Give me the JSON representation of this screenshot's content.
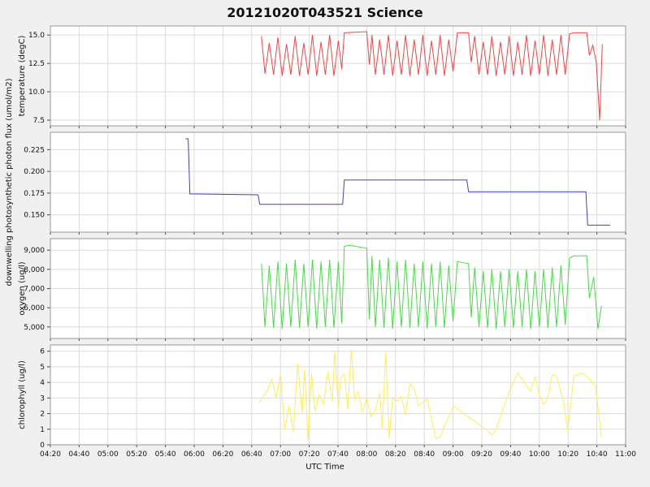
{
  "title": "20121020T043521 Science",
  "xaxis": {
    "label": "UTC Time",
    "range": [
      4.3333,
      11.0
    ],
    "tick_labels": [
      "04:20",
      "04:40",
      "05:00",
      "05:20",
      "05:40",
      "06:00",
      "06:20",
      "06:40",
      "07:00",
      "07:20",
      "07:40",
      "08:00",
      "08:20",
      "08:40",
      "09:00",
      "09:20",
      "09:40",
      "10:00",
      "10:20",
      "10:40",
      "11:00"
    ]
  },
  "colors": {
    "background": "#f0f0f0",
    "plot_bg": "#ffffff",
    "grid": "#dcdcdc",
    "frame": "#999999",
    "tick": "#444444"
  },
  "chart_data": [
    {
      "type": "line",
      "name": "temperature",
      "series_color": "#ff4040",
      "ylabel": "temperature (degC)",
      "ylim": [
        7.0,
        15.8
      ],
      "yticks": [
        7.5,
        10.0,
        12.5,
        15.0
      ],
      "ytick_labels": [
        "7.5",
        "10.0",
        "12.5",
        "15.0"
      ],
      "grid": true,
      "points": [
        [
          6.78,
          14.9
        ],
        [
          6.82,
          11.6
        ],
        [
          6.87,
          14.3
        ],
        [
          6.92,
          11.5
        ],
        [
          6.97,
          14.8
        ],
        [
          7.02,
          11.4
        ],
        [
          7.07,
          14.2
        ],
        [
          7.12,
          11.5
        ],
        [
          7.17,
          14.9
        ],
        [
          7.22,
          11.4
        ],
        [
          7.27,
          14.3
        ],
        [
          7.32,
          11.5
        ],
        [
          7.37,
          15.0
        ],
        [
          7.42,
          11.4
        ],
        [
          7.47,
          14.4
        ],
        [
          7.52,
          11.5
        ],
        [
          7.57,
          15.0
        ],
        [
          7.62,
          11.4
        ],
        [
          7.67,
          14.5
        ],
        [
          7.71,
          12.0
        ],
        [
          7.74,
          15.2
        ],
        [
          8.0,
          15.3
        ],
        [
          8.03,
          12.4
        ],
        [
          8.06,
          15.0
        ],
        [
          8.1,
          11.5
        ],
        [
          8.15,
          14.6
        ],
        [
          8.2,
          11.5
        ],
        [
          8.25,
          15.0
        ],
        [
          8.3,
          11.4
        ],
        [
          8.35,
          14.5
        ],
        [
          8.4,
          11.5
        ],
        [
          8.45,
          15.0
        ],
        [
          8.5,
          11.4
        ],
        [
          8.55,
          14.6
        ],
        [
          8.6,
          11.5
        ],
        [
          8.65,
          15.0
        ],
        [
          8.7,
          11.4
        ],
        [
          8.75,
          14.5
        ],
        [
          8.8,
          11.5
        ],
        [
          8.85,
          15.0
        ],
        [
          8.9,
          11.4
        ],
        [
          8.95,
          14.6
        ],
        [
          9.0,
          11.8
        ],
        [
          9.05,
          15.2
        ],
        [
          9.18,
          15.2
        ],
        [
          9.21,
          12.6
        ],
        [
          9.25,
          14.9
        ],
        [
          9.3,
          11.5
        ],
        [
          9.35,
          14.4
        ],
        [
          9.4,
          11.5
        ],
        [
          9.45,
          14.9
        ],
        [
          9.5,
          11.4
        ],
        [
          9.55,
          14.4
        ],
        [
          9.6,
          11.5
        ],
        [
          9.65,
          14.9
        ],
        [
          9.7,
          11.4
        ],
        [
          9.75,
          14.4
        ],
        [
          9.8,
          11.5
        ],
        [
          9.85,
          15.0
        ],
        [
          9.9,
          11.4
        ],
        [
          9.95,
          14.5
        ],
        [
          10.0,
          11.5
        ],
        [
          10.05,
          15.0
        ],
        [
          10.1,
          11.4
        ],
        [
          10.15,
          14.6
        ],
        [
          10.2,
          11.5
        ],
        [
          10.25,
          15.0
        ],
        [
          10.3,
          11.5
        ],
        [
          10.35,
          15.1
        ],
        [
          10.4,
          15.2
        ],
        [
          10.55,
          15.2
        ],
        [
          10.58,
          13.2
        ],
        [
          10.62,
          14.1
        ],
        [
          10.66,
          12.6
        ],
        [
          10.7,
          7.5
        ],
        [
          10.73,
          14.2
        ]
      ]
    },
    {
      "type": "line",
      "name": "ppf",
      "series_color": "#4040cc",
      "ylabel": "downwelling photosynthetic photon flux (umol/m2)",
      "ylim": [
        0.13,
        0.245
      ],
      "yticks": [
        0.15,
        0.175,
        0.2,
        0.225
      ],
      "ytick_labels": [
        "0.150",
        "0.175",
        "0.200",
        "0.225"
      ],
      "grid": true,
      "points": [
        [
          5.9,
          0.2375
        ],
        [
          5.93,
          0.2375
        ],
        [
          5.95,
          0.174
        ],
        [
          6.74,
          0.173
        ],
        [
          6.76,
          0.162
        ],
        [
          7.72,
          0.162
        ],
        [
          7.74,
          0.19
        ],
        [
          9.16,
          0.19
        ],
        [
          9.18,
          0.1765
        ],
        [
          10.54,
          0.1765
        ],
        [
          10.56,
          0.138
        ],
        [
          10.82,
          0.138
        ]
      ]
    },
    {
      "type": "line",
      "name": "oxygen",
      "series_color": "#44dd44",
      "ylabel": "oxygen (ug/l)",
      "ylim": [
        4400,
        9600
      ],
      "yticks": [
        5000,
        6000,
        7000,
        8000,
        9000
      ],
      "ytick_labels": [
        "5,000",
        "6,000",
        "7,000",
        "8,000",
        "9,000"
      ],
      "grid": true,
      "points": [
        [
          6.78,
          8300
        ],
        [
          6.82,
          5000
        ],
        [
          6.87,
          8200
        ],
        [
          6.92,
          4950
        ],
        [
          6.97,
          8400
        ],
        [
          7.02,
          4900
        ],
        [
          7.07,
          8300
        ],
        [
          7.12,
          5000
        ],
        [
          7.17,
          8500
        ],
        [
          7.22,
          4950
        ],
        [
          7.27,
          8300
        ],
        [
          7.32,
          5000
        ],
        [
          7.37,
          8500
        ],
        [
          7.42,
          4900
        ],
        [
          7.47,
          8400
        ],
        [
          7.52,
          5000
        ],
        [
          7.57,
          8500
        ],
        [
          7.62,
          4950
        ],
        [
          7.67,
          8400
        ],
        [
          7.71,
          5200
        ],
        [
          7.74,
          9200
        ],
        [
          7.8,
          9250
        ],
        [
          8.0,
          9100
        ],
        [
          8.03,
          5400
        ],
        [
          8.06,
          8700
        ],
        [
          8.1,
          5000
        ],
        [
          8.15,
          8500
        ],
        [
          8.2,
          4950
        ],
        [
          8.25,
          8600
        ],
        [
          8.3,
          4900
        ],
        [
          8.35,
          8400
        ],
        [
          8.4,
          5000
        ],
        [
          8.45,
          8500
        ],
        [
          8.5,
          4950
        ],
        [
          8.55,
          8300
        ],
        [
          8.6,
          5000
        ],
        [
          8.65,
          8400
        ],
        [
          8.7,
          4900
        ],
        [
          8.75,
          8300
        ],
        [
          8.8,
          5000
        ],
        [
          8.85,
          8400
        ],
        [
          8.9,
          4950
        ],
        [
          8.95,
          8200
        ],
        [
          9.0,
          5300
        ],
        [
          9.05,
          8400
        ],
        [
          9.18,
          8300
        ],
        [
          9.21,
          5500
        ],
        [
          9.25,
          8100
        ],
        [
          9.3,
          5000
        ],
        [
          9.35,
          7900
        ],
        [
          9.4,
          4950
        ],
        [
          9.45,
          8000
        ],
        [
          9.5,
          4900
        ],
        [
          9.55,
          7900
        ],
        [
          9.6,
          5000
        ],
        [
          9.65,
          8000
        ],
        [
          9.7,
          4950
        ],
        [
          9.75,
          7900
        ],
        [
          9.8,
          5000
        ],
        [
          9.85,
          8000
        ],
        [
          9.9,
          4900
        ],
        [
          9.95,
          7900
        ],
        [
          10.0,
          5000
        ],
        [
          10.05,
          8000
        ],
        [
          10.1,
          4950
        ],
        [
          10.15,
          8100
        ],
        [
          10.2,
          5000
        ],
        [
          10.25,
          8200
        ],
        [
          10.3,
          5100
        ],
        [
          10.35,
          8600
        ],
        [
          10.4,
          8700
        ],
        [
          10.55,
          8700
        ],
        [
          10.58,
          6500
        ],
        [
          10.63,
          7600
        ],
        [
          10.68,
          4900
        ],
        [
          10.72,
          6100
        ]
      ]
    },
    {
      "type": "line",
      "name": "chlorophyll",
      "series_color": "#ffee55",
      "ylabel": "chlorophyll (ug/l)",
      "ylim": [
        0,
        6.4
      ],
      "yticks": [
        0,
        1,
        2,
        3,
        4,
        5,
        6
      ],
      "ytick_labels": [
        "0",
        "1",
        "2",
        "3",
        "4",
        "5",
        "6"
      ],
      "grid": true,
      "points": [
        [
          6.75,
          2.7
        ],
        [
          6.85,
          3.5
        ],
        [
          6.9,
          4.2
        ],
        [
          6.95,
          3.0
        ],
        [
          7.0,
          4.5
        ],
        [
          7.05,
          1.0
        ],
        [
          7.1,
          2.5
        ],
        [
          7.15,
          0.8
        ],
        [
          7.2,
          5.2
        ],
        [
          7.25,
          2.0
        ],
        [
          7.28,
          4.8
        ],
        [
          7.32,
          0.3
        ],
        [
          7.36,
          4.6
        ],
        [
          7.4,
          2.2
        ],
        [
          7.45,
          3.2
        ],
        [
          7.5,
          2.6
        ],
        [
          7.55,
          4.7
        ],
        [
          7.6,
          2.8
        ],
        [
          7.63,
          6.0
        ],
        [
          7.67,
          2.4
        ],
        [
          7.7,
          4.3
        ],
        [
          7.74,
          4.5
        ],
        [
          7.78,
          2.3
        ],
        [
          7.82,
          6.1
        ],
        [
          7.86,
          2.9
        ],
        [
          7.9,
          3.4
        ],
        [
          7.95,
          2.1
        ],
        [
          8.0,
          3.0
        ],
        [
          8.05,
          1.8
        ],
        [
          8.1,
          2.2
        ],
        [
          8.15,
          3.3
        ],
        [
          8.18,
          1.1
        ],
        [
          8.22,
          5.9
        ],
        [
          8.26,
          0.4
        ],
        [
          8.3,
          3.0
        ],
        [
          8.35,
          2.8
        ],
        [
          8.4,
          3.1
        ],
        [
          8.45,
          1.9
        ],
        [
          8.5,
          3.9
        ],
        [
          8.55,
          3.6
        ],
        [
          8.6,
          2.5
        ],
        [
          8.65,
          2.7
        ],
        [
          8.7,
          3.0
        ],
        [
          8.75,
          1.6
        ],
        [
          8.8,
          0.4
        ],
        [
          8.85,
          0.5
        ],
        [
          8.9,
          1.2
        ],
        [
          8.95,
          1.8
        ],
        [
          9.0,
          2.5
        ],
        [
          9.05,
          2.3
        ],
        [
          9.1,
          2.1
        ],
        [
          9.15,
          1.9
        ],
        [
          9.2,
          1.7
        ],
        [
          9.25,
          1.5
        ],
        [
          9.3,
          1.3
        ],
        [
          9.35,
          1.1
        ],
        [
          9.4,
          0.9
        ],
        [
          9.45,
          0.6
        ],
        [
          9.5,
          1.0
        ],
        [
          9.55,
          1.8
        ],
        [
          9.6,
          2.6
        ],
        [
          9.65,
          3.4
        ],
        [
          9.7,
          4.0
        ],
        [
          9.75,
          4.6
        ],
        [
          9.8,
          4.2
        ],
        [
          9.85,
          3.8
        ],
        [
          9.9,
          3.4
        ],
        [
          9.95,
          4.4
        ],
        [
          10.0,
          3.2
        ],
        [
          10.05,
          2.6
        ],
        [
          10.1,
          3.0
        ],
        [
          10.15,
          4.5
        ],
        [
          10.2,
          4.4
        ],
        [
          10.28,
          2.8
        ],
        [
          10.33,
          0.9
        ],
        [
          10.4,
          4.4
        ],
        [
          10.5,
          4.6
        ],
        [
          10.58,
          4.2
        ],
        [
          10.65,
          3.8
        ],
        [
          10.72,
          0.5
        ]
      ]
    }
  ]
}
